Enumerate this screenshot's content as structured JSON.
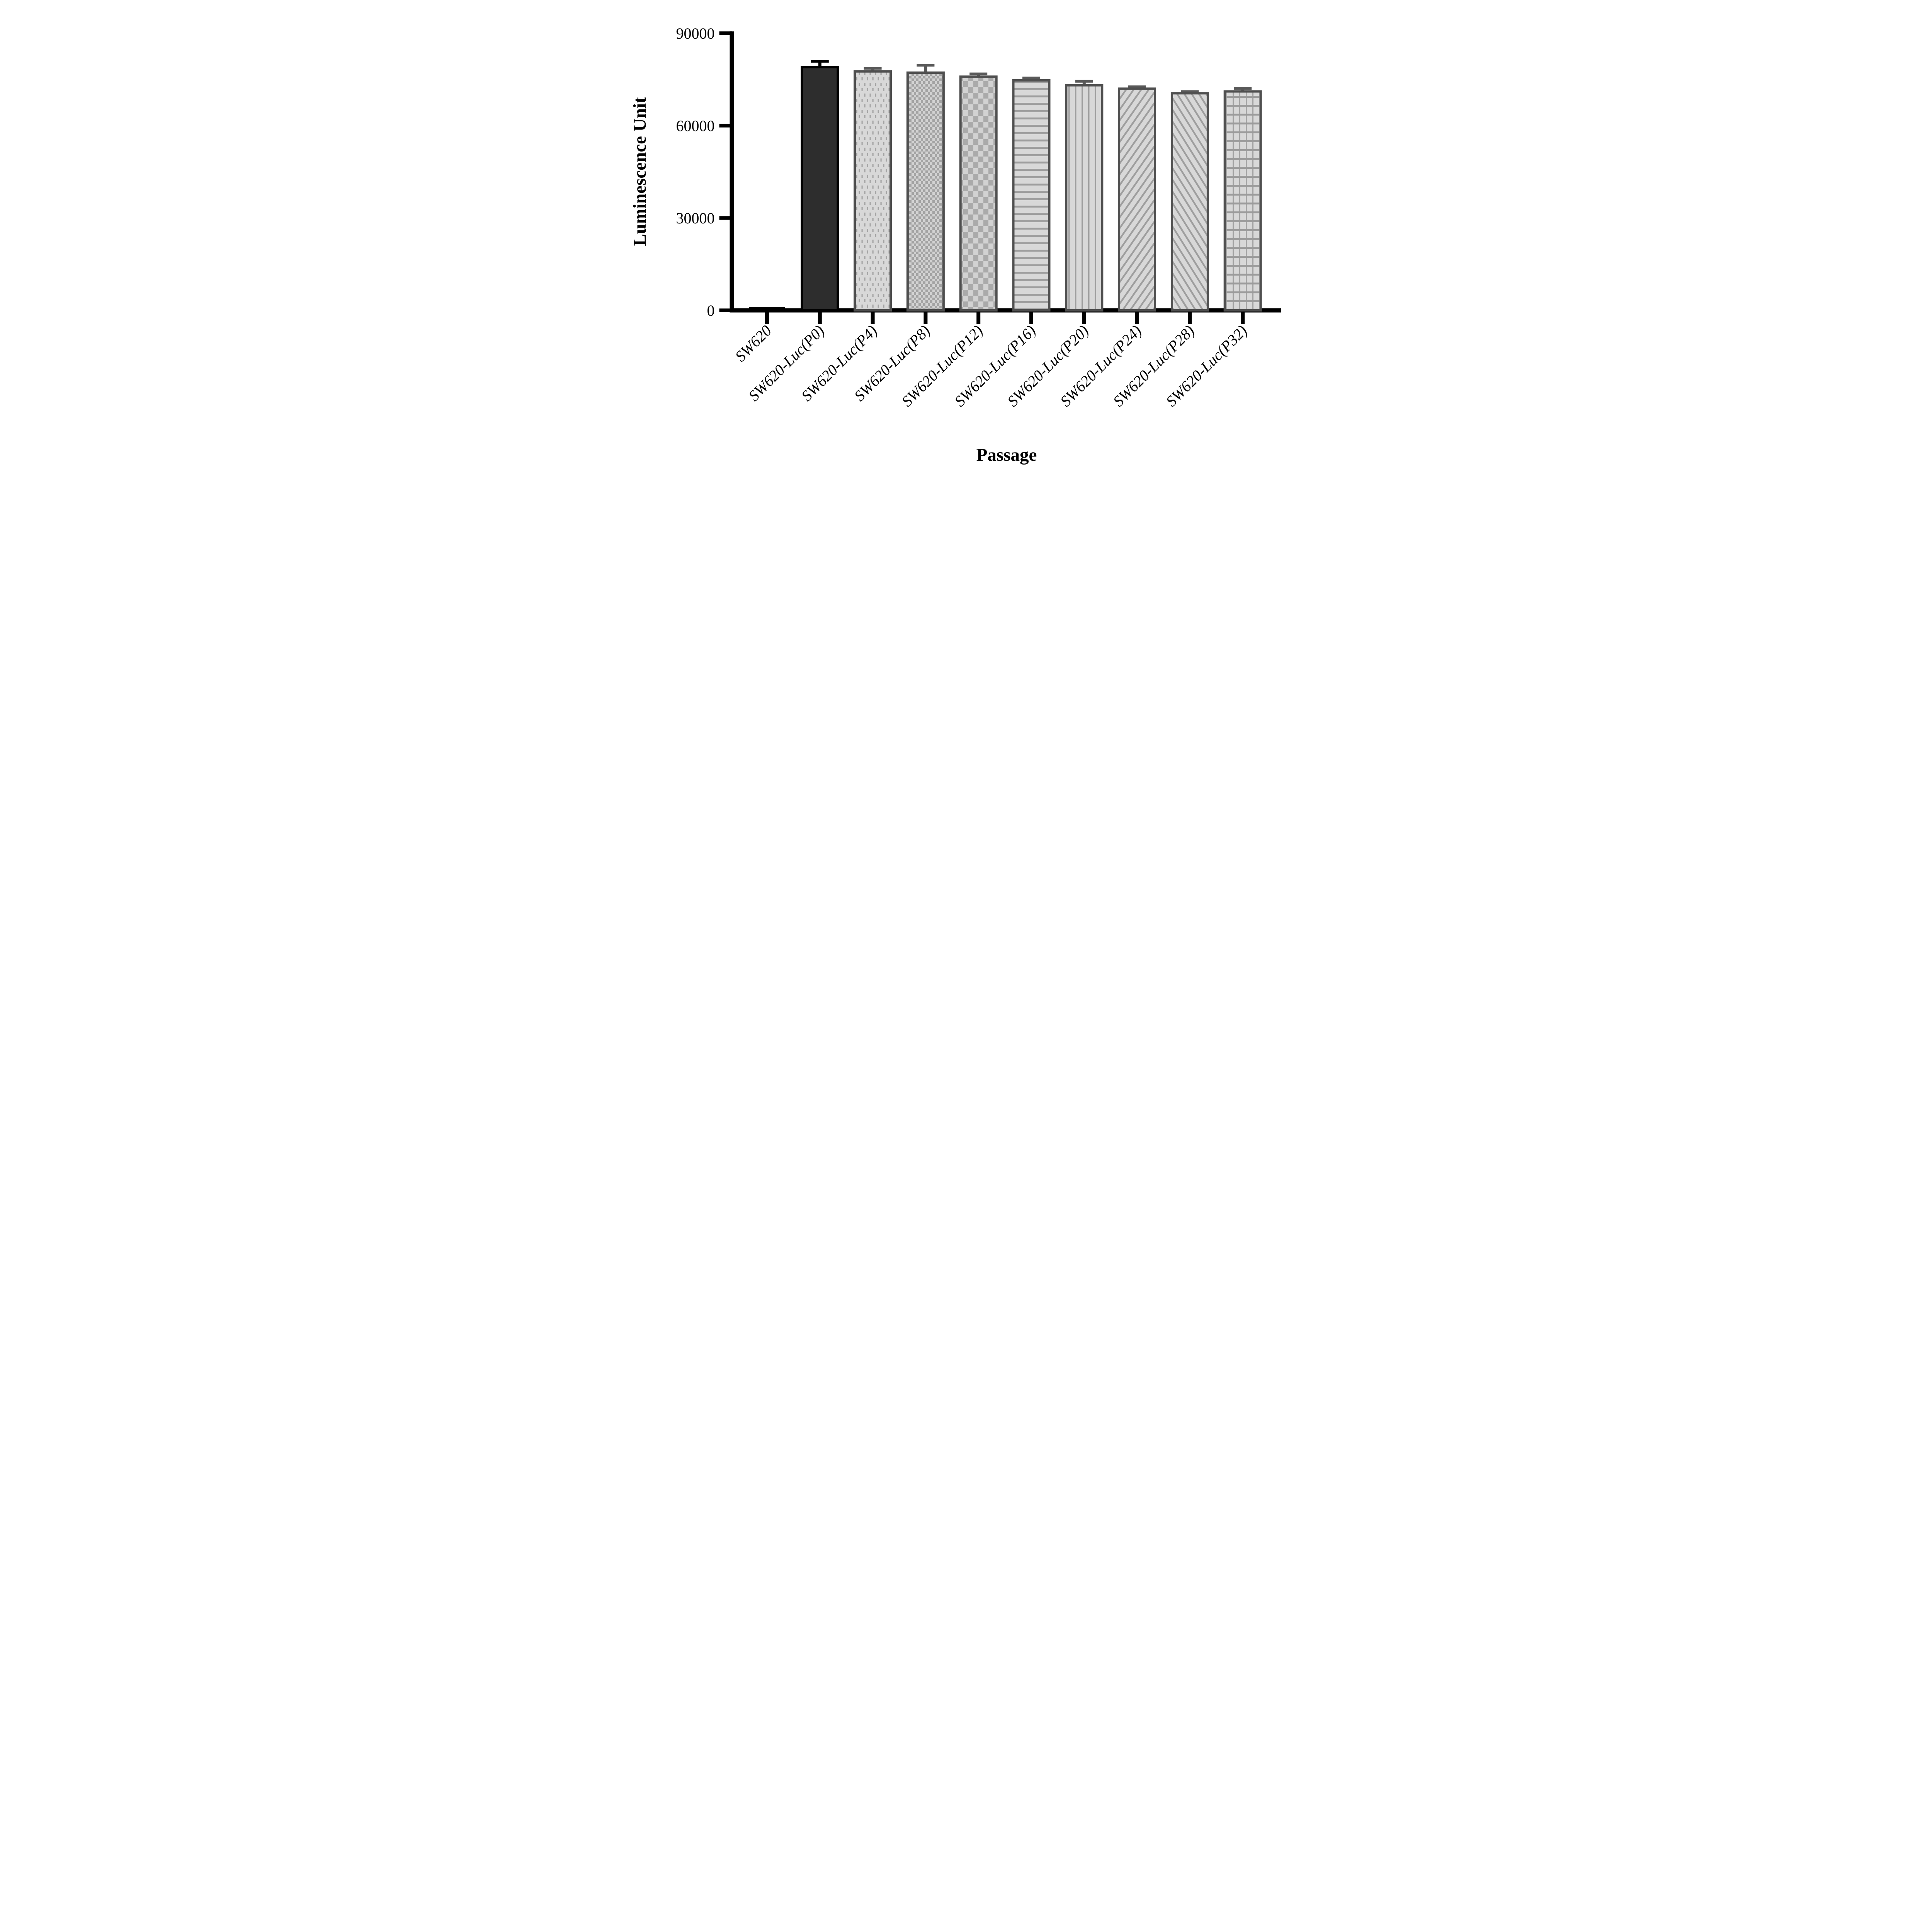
{
  "chart_data": {
    "type": "bar",
    "title": "",
    "xlabel": "Passage",
    "ylabel": "Luminescence Unit",
    "ylim": [
      0,
      90000
    ],
    "yticks": [
      0,
      30000,
      60000,
      90000
    ],
    "grid": false,
    "legend": "none",
    "categories": [
      "SW620",
      "SW620-Luc(P0)",
      "SW620-Luc(P4)",
      "SW620-Luc(P8)",
      "SW620-Luc(P12)",
      "SW620-Luc(P16)",
      "SW620-Luc(P20)",
      "SW620-Luc(P24)",
      "SW620-Luc(P28)",
      "SW620-Luc(P32)"
    ],
    "series": [
      {
        "name": "Luminescence Unit (mean + SD)",
        "values": [
          800,
          79000,
          77600,
          77200,
          75900,
          74700,
          73100,
          72000,
          70500,
          71100
        ],
        "sd": [
          0,
          1900,
          1000,
          2400,
          900,
          750,
          1300,
          600,
          550,
          1000
        ]
      }
    ],
    "bar_patterns": [
      "solid-black",
      "solid-dark",
      "dots",
      "checker-fine",
      "checker-coarse",
      "horizontal-lines",
      "vertical-lines",
      "diagonal-up",
      "diagonal-down",
      "grid-squares"
    ],
    "colors": {
      "axis": "#000000",
      "bar1_fill": "#2d2d2d",
      "bar1_border": "#000000",
      "pattern_border": "#4f4f4f",
      "pattern_background": "#d8d8d8",
      "pattern_mark": "#a0a0a0",
      "error_bar_dark": "#000000",
      "error_bar_gray": "#595959",
      "background": "#ffffff"
    }
  }
}
